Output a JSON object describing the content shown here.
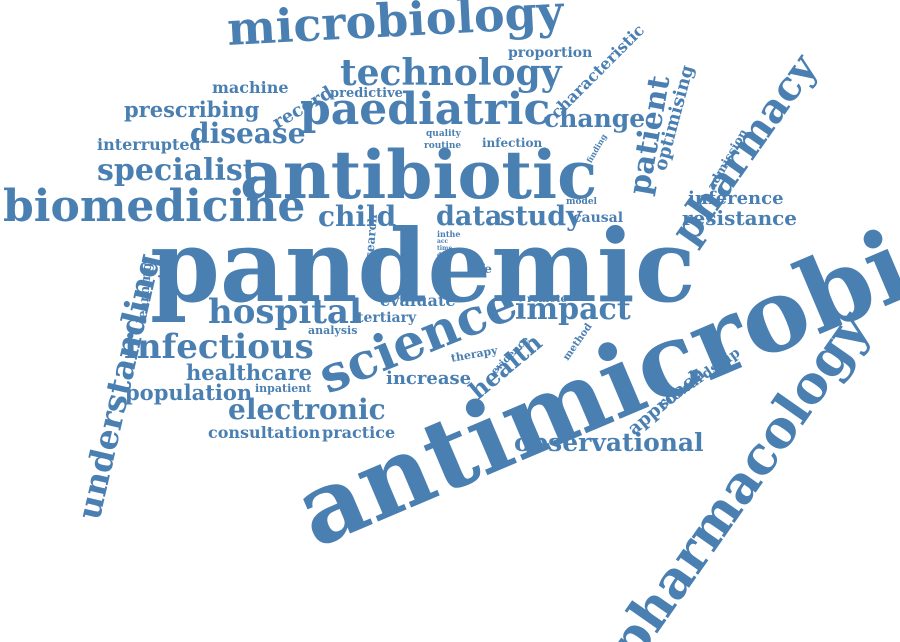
{
  "colors": {
    "word": "#4a7fb2",
    "background": "#ffffff"
  },
  "words": [
    {
      "text": "pandemic"
    },
    {
      "text": "antimicrobial"
    },
    {
      "text": "antibiotic"
    },
    {
      "text": "pharmacology"
    },
    {
      "text": "science"
    },
    {
      "text": "biomedicine"
    },
    {
      "text": "microbiology"
    },
    {
      "text": "paediatric"
    },
    {
      "text": "technology"
    },
    {
      "text": "pharmacy"
    },
    {
      "text": "understanding"
    },
    {
      "text": "infectious"
    },
    {
      "text": "hospital"
    },
    {
      "text": "electronic"
    },
    {
      "text": "observational"
    },
    {
      "text": "specialist"
    },
    {
      "text": "impact"
    },
    {
      "text": "disease"
    },
    {
      "text": "child"
    },
    {
      "text": "data"
    },
    {
      "text": "study"
    },
    {
      "text": "patient"
    },
    {
      "text": "change"
    },
    {
      "text": "resistance"
    },
    {
      "text": "inference"
    },
    {
      "text": "population"
    },
    {
      "text": "healthcare"
    },
    {
      "text": "prescribing"
    },
    {
      "text": "health"
    },
    {
      "text": "approach"
    },
    {
      "text": "increase"
    },
    {
      "text": "consultation"
    },
    {
      "text": "practice"
    },
    {
      "text": "optimising"
    },
    {
      "text": "characteristic"
    },
    {
      "text": "proportion"
    },
    {
      "text": "record"
    },
    {
      "text": "machine"
    },
    {
      "text": "interrupted"
    },
    {
      "text": "evaluate"
    },
    {
      "text": "tertiary"
    },
    {
      "text": "learning"
    },
    {
      "text": "stewardship"
    },
    {
      "text": "admission"
    },
    {
      "text": "predictive"
    },
    {
      "text": "infection"
    },
    {
      "text": "causal"
    },
    {
      "text": "analysis"
    },
    {
      "text": "inpatient"
    },
    {
      "text": "research"
    },
    {
      "text": "period"
    },
    {
      "text": "life"
    },
    {
      "text": "remote"
    },
    {
      "text": "therapy"
    },
    {
      "text": "evidence"
    },
    {
      "text": "method"
    },
    {
      "text": "quality"
    },
    {
      "text": "routine"
    },
    {
      "text": "finding"
    },
    {
      "text": "model"
    },
    {
      "text": "inthe"
    },
    {
      "text": "acc"
    },
    {
      "text": "time"
    },
    {
      "text": "day"
    }
  ]
}
